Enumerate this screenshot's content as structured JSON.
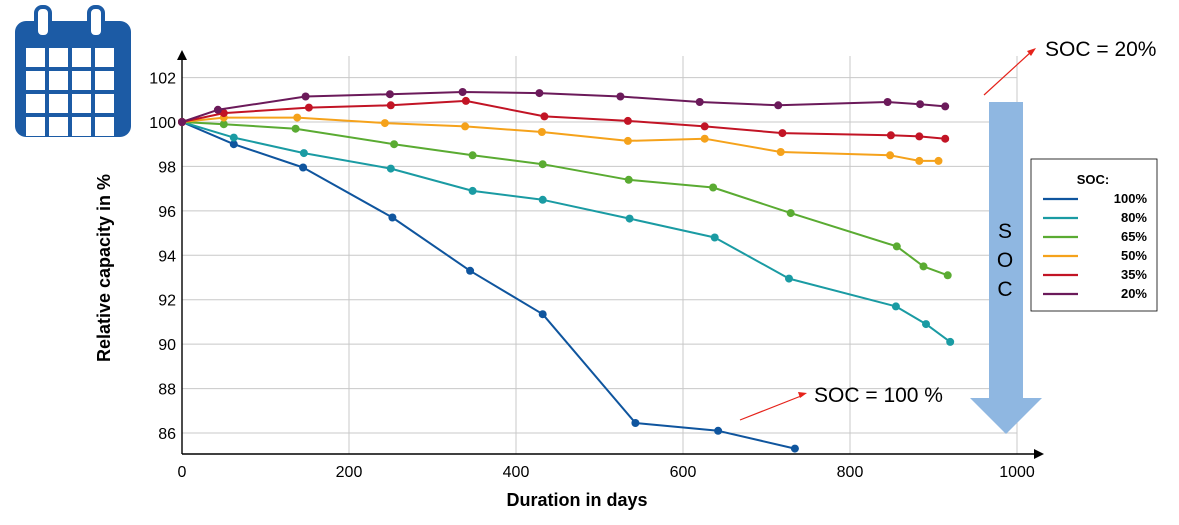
{
  "icon": {
    "name": "calendar-icon",
    "color": "#1c5ba5"
  },
  "chart_data": {
    "type": "line",
    "xlabel": "Duration in days",
    "ylabel": "Relative capacity in %",
    "xlim": [
      0,
      1000
    ],
    "ylim": [
      85,
      102.5
    ],
    "xticks": [
      0,
      200,
      400,
      600,
      800,
      1000
    ],
    "yticks": [
      86,
      88,
      90,
      92,
      94,
      96,
      98,
      100,
      102
    ],
    "grid": true,
    "legend": {
      "title": "SOC:",
      "placement": "right"
    },
    "series": [
      {
        "name": "100%",
        "color": "#0f559e",
        "points": [
          [
            0,
            100.0
          ],
          [
            62,
            99.0
          ],
          [
            145,
            97.95
          ],
          [
            252,
            95.7
          ],
          [
            345,
            93.3
          ],
          [
            432,
            91.35
          ],
          [
            543,
            86.45
          ],
          [
            642,
            86.1
          ],
          [
            734,
            85.3
          ]
        ]
      },
      {
        "name": "80%",
        "color": "#1a9ba3",
        "points": [
          [
            0,
            100.0
          ],
          [
            62,
            99.3
          ],
          [
            146,
            98.6
          ],
          [
            250,
            97.9
          ],
          [
            348,
            96.9
          ],
          [
            432,
            96.5
          ],
          [
            536,
            95.65
          ],
          [
            638,
            94.8
          ],
          [
            727,
            92.95
          ],
          [
            855,
            91.7
          ],
          [
            891,
            90.9
          ],
          [
            920,
            90.1
          ]
        ]
      },
      {
        "name": "65%",
        "color": "#5aab32",
        "points": [
          [
            0,
            100.0
          ],
          [
            50,
            99.9
          ],
          [
            136,
            99.7
          ],
          [
            254,
            99.0
          ],
          [
            348,
            98.5
          ],
          [
            432,
            98.1
          ],
          [
            535,
            97.4
          ],
          [
            636,
            97.05
          ],
          [
            729,
            95.9
          ],
          [
            856,
            94.4
          ],
          [
            888,
            93.5
          ],
          [
            917,
            93.1
          ]
        ]
      },
      {
        "name": "50%",
        "color": "#f5a21b",
        "points": [
          [
            0,
            100.0
          ],
          [
            50,
            100.2
          ],
          [
            138,
            100.2
          ],
          [
            243,
            99.95
          ],
          [
            339,
            99.8
          ],
          [
            431,
            99.55
          ],
          [
            534,
            99.15
          ],
          [
            626,
            99.25
          ],
          [
            717,
            98.65
          ],
          [
            848,
            98.5
          ],
          [
            883,
            98.25
          ],
          [
            906,
            98.25
          ]
        ]
      },
      {
        "name": "35%",
        "color": "#c21425",
        "points": [
          [
            0,
            100.0
          ],
          [
            50,
            100.4
          ],
          [
            152,
            100.65
          ],
          [
            250,
            100.75
          ],
          [
            340,
            100.95
          ],
          [
            434,
            100.25
          ],
          [
            534,
            100.05
          ],
          [
            626,
            99.8
          ],
          [
            719,
            99.5
          ],
          [
            849,
            99.4
          ],
          [
            883,
            99.35
          ],
          [
            914,
            99.25
          ]
        ]
      },
      {
        "name": "20%",
        "color": "#6b1a5a",
        "points": [
          [
            0,
            100.0
          ],
          [
            43,
            100.55
          ],
          [
            148,
            101.15
          ],
          [
            249,
            101.25
          ],
          [
            336,
            101.35
          ],
          [
            428,
            101.3
          ],
          [
            525,
            101.15
          ],
          [
            620,
            100.9
          ],
          [
            714,
            100.75
          ],
          [
            845,
            100.9
          ],
          [
            884,
            100.8
          ],
          [
            914,
            100.7
          ]
        ]
      }
    ],
    "annotations": {
      "top": "SOC = 20%",
      "bottom": "SOC = 100 %",
      "arrow_letters": [
        "S",
        "O",
        "C"
      ],
      "arrow_color": "#8fb7e1",
      "pointer_color": "#e5231b"
    }
  }
}
